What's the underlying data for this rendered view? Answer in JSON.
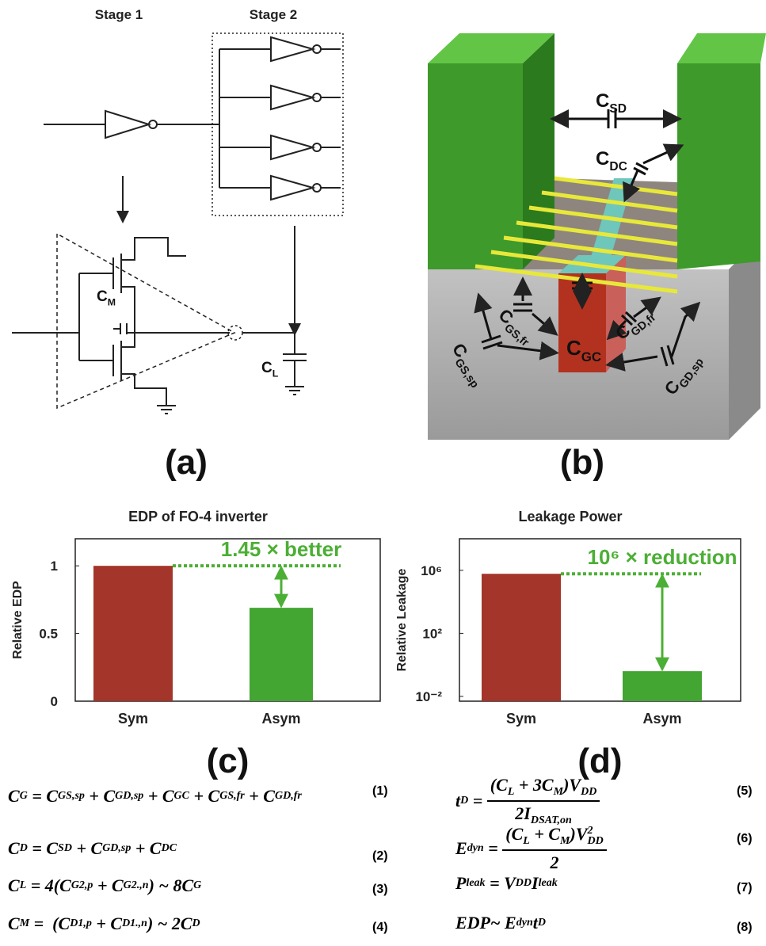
{
  "panel_a": {
    "stage_1": "Stage 1",
    "stage_2": "Stage 2",
    "c_m": {
      "t": "C",
      "sub": "M"
    },
    "c_l": {
      "t": "C",
      "sub": "L"
    },
    "label": "(a)"
  },
  "panel_b": {
    "label": "(b)",
    "capacitances": [
      {
        "t": "C",
        "sub": "SD"
      },
      {
        "t": "C",
        "sub": "DC"
      },
      {
        "t": "C",
        "sub": "GS,fr"
      },
      {
        "t": "C",
        "sub": "GC"
      },
      {
        "t": "C",
        "sub": "GD,fr"
      },
      {
        "t": "C",
        "sub": "GS,sp"
      },
      {
        "t": "C",
        "sub": "GD,sp"
      }
    ]
  },
  "chart_data": [
    {
      "type": "bar",
      "title": "EDP of FO-4 inverter",
      "y_label": "Relative EDP",
      "panel_label": "(c)",
      "categories": [
        "Sym",
        "Asym"
      ],
      "values": [
        1,
        0.69
      ],
      "colors": [
        "#a3352a",
        "#43a532"
      ],
      "ylim": [
        0,
        1.2
      ],
      "yticks": [
        0,
        0.5,
        1
      ],
      "log_y": false,
      "annotation": "1.45 × better",
      "annotation_color": "#4caf35"
    },
    {
      "type": "bar",
      "title": "Leakage Power",
      "y_label": "Relative Leakage",
      "panel_label": "(d)",
      "categories": [
        "Sym",
        "Asym"
      ],
      "values": [
        600000,
        0.4
      ],
      "colors": [
        "#a3352a",
        "#43a532"
      ],
      "ylim": [
        0.005,
        100000000
      ],
      "yticks": [
        {
          "value": 0.01,
          "label": "10⁻²"
        },
        {
          "value": 100,
          "label": "10²"
        },
        {
          "value": 1000000,
          "label": "10⁶"
        }
      ],
      "log_y": true,
      "annotation": "10⁶ × reduction",
      "annotation_color": "#4caf35"
    }
  ],
  "equations": [
    {
      "lhs": [
        {
          "t": "C",
          "sub": "G"
        }
      ],
      "rhs": [
        " = ",
        {
          "t": "C",
          "sub": "GS,sp"
        },
        " + ",
        {
          "t": "C",
          "sub": "GD,sp"
        },
        " + ",
        {
          "t": "C",
          "sub": "GC"
        },
        " + ",
        {
          "t": "C",
          "sub": "GS,fr"
        },
        " + ",
        {
          "t": "C",
          "sub": "GD,fr"
        }
      ],
      "number": "(1)"
    },
    {
      "lhs": [
        {
          "t": "C",
          "sub": "D"
        }
      ],
      "rhs": [
        " = ",
        {
          "t": "C",
          "sub": "SD"
        },
        " + ",
        {
          "t": "C",
          "sub": "GD,sp"
        },
        " + ",
        {
          "t": "C",
          "sub": "DC"
        }
      ],
      "number": "(2)"
    },
    {
      "lhs": [
        {
          "t": "C",
          "sub": "L"
        }
      ],
      "rhs": [
        " = 4(",
        {
          "t": "C",
          "sub": "G2,p"
        },
        " + ",
        {
          "t": "C",
          "sub": "G2.,n"
        },
        ") ~ 8",
        {
          "t": "C",
          "sub": "G"
        }
      ],
      "number": "(3)"
    },
    {
      "lhs": [
        {
          "t": "C",
          "sub": "M"
        }
      ],
      "rhs": [
        " =  (",
        {
          "t": "C",
          "sub": "D1,p"
        },
        " + ",
        {
          "t": "C",
          "sub": "D1.,n"
        },
        ") ~ 2",
        {
          "t": "C",
          "sub": "D"
        }
      ],
      "number": "(4)"
    },
    {
      "lhs": [
        {
          "t": "t",
          "sub": "D"
        },
        " = "
      ],
      "num": [
        "(",
        {
          "t": "C",
          "sub": "L"
        },
        " + 3",
        {
          "t": "C",
          "sub": "M"
        },
        ")",
        {
          "t": "V",
          "sub": "DD"
        }
      ],
      "den": [
        "2",
        {
          "t": "I",
          "sub": "DSAT,on"
        }
      ],
      "number": "(5)"
    },
    {
      "lhs": [
        {
          "t": "E",
          "sub": "dyn"
        },
        " = "
      ],
      "num": [
        "(",
        {
          "t": "C",
          "sub": "L"
        },
        " + ",
        {
          "t": "C",
          "sub": "M"
        },
        ")",
        {
          "t": "V",
          "sub": "DD",
          "sup": "2"
        }
      ],
      "den": [
        "2"
      ],
      "number": "(6)"
    },
    {
      "lhs": [
        {
          "t": "P",
          "sub": "leak"
        }
      ],
      "rhs": [
        " = ",
        {
          "t": "V",
          "sub": "DD"
        },
        {
          "t": "I",
          "sub": "leak"
        }
      ],
      "number": "(7)"
    },
    {
      "lhs": [
        "EDP~ ",
        {
          "t": "E",
          "sub": "dyn"
        },
        {
          "t": "t",
          "sub": "D"
        }
      ],
      "number": "(8)"
    }
  ]
}
